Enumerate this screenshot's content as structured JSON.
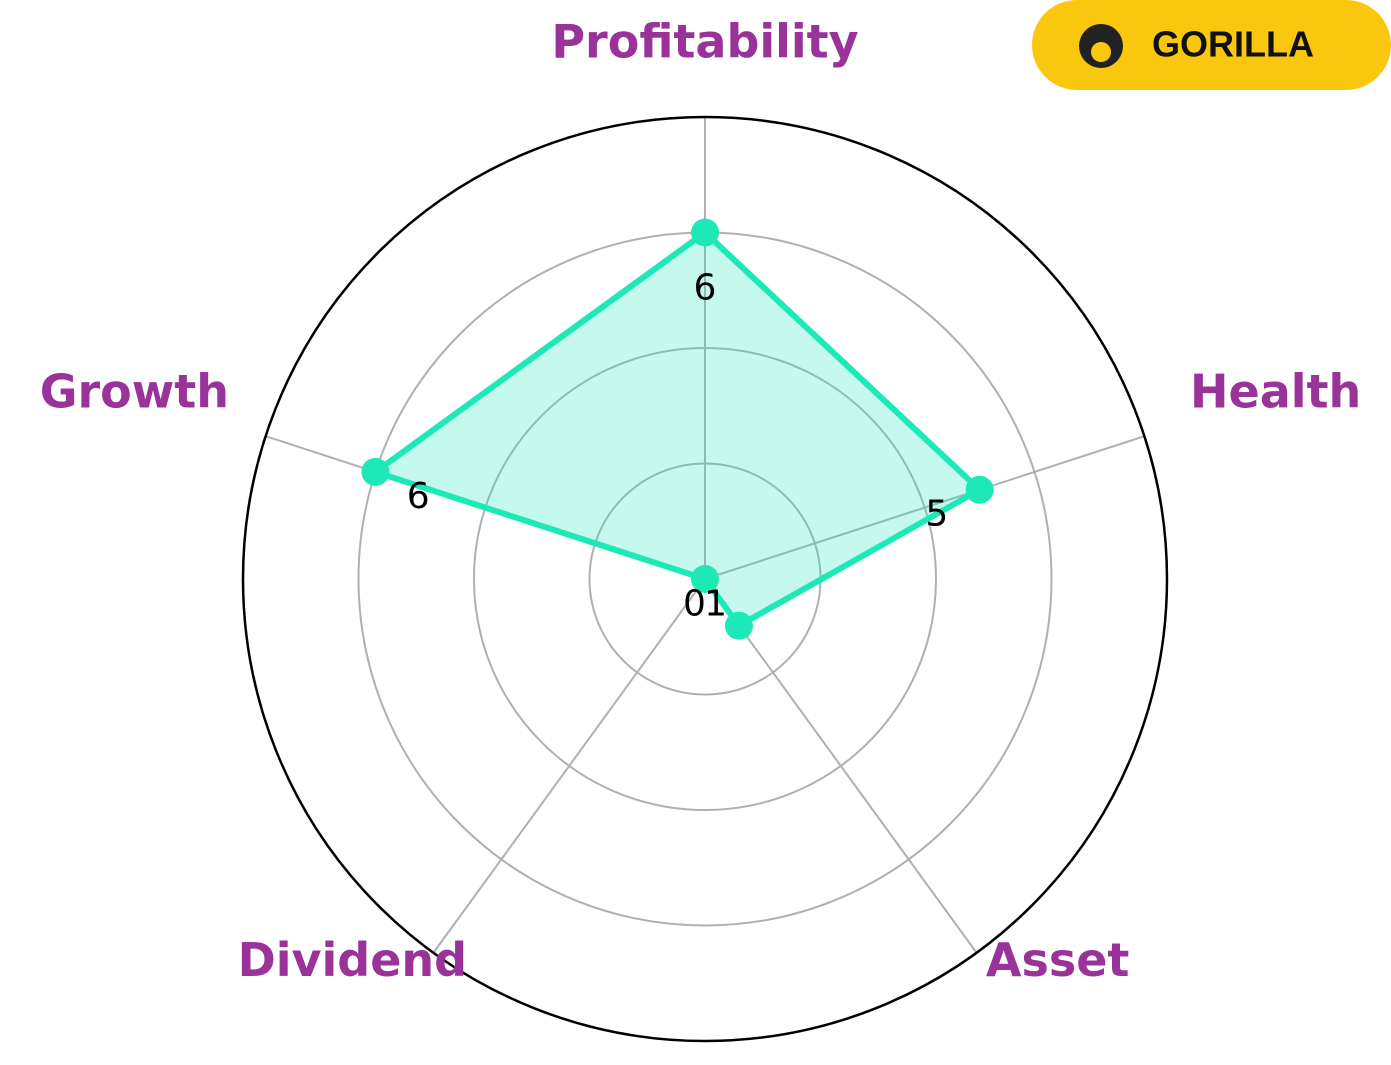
{
  "chart_data": {
    "type": "radar",
    "categories": [
      "Profitability",
      "Health",
      "Asset",
      "Dividend",
      "Growth"
    ],
    "values": [
      6,
      5,
      1,
      0,
      6
    ],
    "color": "#1de9b6",
    "label_color": "#993399",
    "ylim": [
      0,
      8
    ],
    "yticks": [
      2,
      4,
      6
    ],
    "grid": true
  },
  "logo": {
    "text": "GORILLA"
  }
}
